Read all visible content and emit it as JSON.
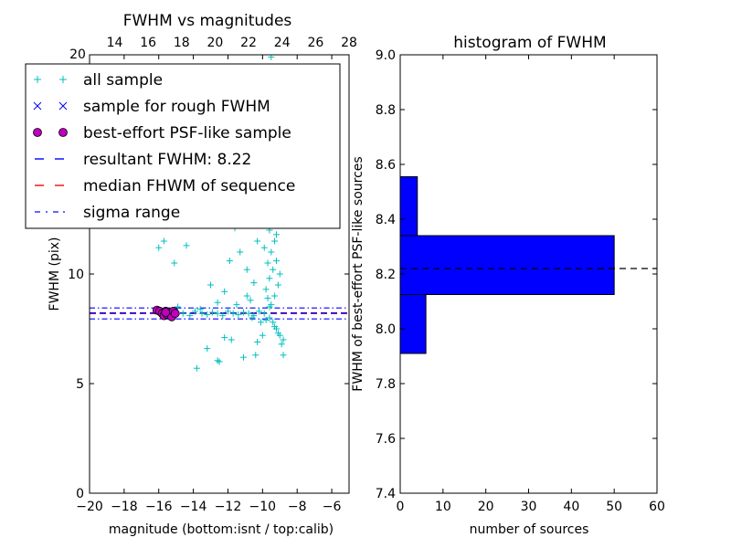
{
  "chart_data": [
    {
      "type": "scatter",
      "title": "FWHM vs magnitudes",
      "xlabel": "magnitude (bottom:isnt / top:calib)",
      "ylabel": "FWHM (pix)",
      "xlim": [
        -20,
        -5
      ],
      "ylim": [
        0,
        20
      ],
      "x_ticks": [
        -20,
        -18,
        -16,
        -14,
        -12,
        -10,
        -8,
        -6
      ],
      "x_tick_labels": [
        "−20",
        "−18",
        "−16",
        "−14",
        "−12",
        "−10",
        "−8",
        "−6"
      ],
      "y_ticks": [
        0,
        5,
        10
      ],
      "y_tick_labels": [
        "0",
        "5",
        "10"
      ],
      "top_axis": {
        "xlim": [
          12.5,
          28
        ],
        "ticks": [
          14,
          16,
          18,
          20,
          22,
          24,
          26,
          28
        ],
        "tick_labels": [
          "14",
          "16",
          "18",
          "20",
          "22",
          "24",
          "26",
          "28"
        ],
        "corner_label": "20"
      },
      "legend_position": "upper-left",
      "legend": [
        {
          "label": "all sample",
          "marker": "plus",
          "color": "#00bfbf"
        },
        {
          "label": "sample for rough FWHM",
          "marker": "x",
          "color": "#0000ff"
        },
        {
          "label": "best-effort PSF-like sample",
          "marker": "circle",
          "color": "#bf00bf"
        },
        {
          "label": "resultant FWHM: 8.22",
          "marker": "dashed",
          "color": "#0000ff"
        },
        {
          "label": "median FHWM of sequence",
          "marker": "dashed",
          "color": "#ff0000"
        },
        {
          "label": "sigma range",
          "marker": "dashdot",
          "color": "#0000ff"
        }
      ],
      "resultant_fwhm": 8.22,
      "median_fwhm": 8.2,
      "sigma_range": [
        7.95,
        8.45
      ],
      "series": [
        {
          "name": "all sample",
          "points": [
            [
              -13.8,
              5.7
            ],
            [
              -12.5,
              6.0
            ],
            [
              -12.6,
              6.05
            ],
            [
              -13.2,
              6.6
            ],
            [
              -11.1,
              6.2
            ],
            [
              -10.4,
              6.3
            ],
            [
              -8.8,
              6.3
            ],
            [
              -12.2,
              7.1
            ],
            [
              -11.8,
              7.0
            ],
            [
              -10.3,
              6.9
            ],
            [
              -10.0,
              7.2
            ],
            [
              -9.1,
              7.3
            ],
            [
              -9.3,
              7.6
            ],
            [
              -8.9,
              6.8
            ],
            [
              -15.8,
              8.2
            ],
            [
              -15.4,
              8.15
            ],
            [
              -15.0,
              8.25
            ],
            [
              -14.6,
              8.2
            ],
            [
              -14.2,
              8.1
            ],
            [
              -13.9,
              8.3
            ],
            [
              -13.5,
              8.2
            ],
            [
              -13.2,
              8.15
            ],
            [
              -12.9,
              8.25
            ],
            [
              -12.6,
              8.2
            ],
            [
              -12.3,
              8.1
            ],
            [
              -12.0,
              8.3
            ],
            [
              -11.7,
              8.2
            ],
            [
              -11.4,
              8.15
            ],
            [
              -11.1,
              8.25
            ],
            [
              -10.8,
              8.2
            ],
            [
              -10.5,
              8.1
            ],
            [
              -10.2,
              8.3
            ],
            [
              -9.9,
              8.2
            ],
            [
              -9.6,
              8.0
            ],
            [
              -9.4,
              7.8
            ],
            [
              -9.2,
              7.5
            ],
            [
              -9.0,
              7.2
            ],
            [
              -8.8,
              7.0
            ],
            [
              -9.5,
              8.6
            ],
            [
              -9.7,
              8.9
            ],
            [
              -9.8,
              9.3
            ],
            [
              -9.6,
              9.8
            ],
            [
              -9.4,
              10.2
            ],
            [
              -9.2,
              10.6
            ],
            [
              -9.5,
              11.0
            ],
            [
              -9.3,
              11.5
            ],
            [
              -9.6,
              12.0
            ],
            [
              -9.1,
              12.5
            ],
            [
              -9.4,
              13.0
            ],
            [
              -9.2,
              11.8
            ],
            [
              -9.0,
              10.0
            ],
            [
              -9.7,
              10.5
            ],
            [
              -9.9,
              11.2
            ],
            [
              -10.1,
              12.3
            ],
            [
              -10.3,
              11.5
            ],
            [
              -9.5,
              12.7
            ],
            [
              -9.0,
              13.3
            ],
            [
              -9.3,
              9.0
            ],
            [
              -9.1,
              9.5
            ],
            [
              -9.6,
              8.5
            ],
            [
              -10.5,
              9.6
            ],
            [
              -10.9,
              10.2
            ],
            [
              -11.3,
              11.0
            ],
            [
              -11.6,
              12.1
            ],
            [
              -12.0,
              12.6
            ],
            [
              -12.8,
              13.3
            ],
            [
              -13.3,
              12.8
            ],
            [
              -14.0,
              13.0
            ],
            [
              -14.4,
              11.3
            ],
            [
              -15.6,
              12.2
            ],
            [
              -15.7,
              11.5
            ],
            [
              -16.0,
              11.2
            ],
            [
              -15.1,
              10.5
            ],
            [
              -13.0,
              9.5
            ],
            [
              -12.2,
              9.2
            ],
            [
              -11.9,
              10.6
            ],
            [
              -10.9,
              9.0
            ],
            [
              -11.5,
              8.6
            ],
            [
              -10.7,
              8.8
            ],
            [
              -12.6,
              8.7
            ],
            [
              -13.6,
              8.4
            ],
            [
              -14.9,
              8.5
            ],
            [
              -9.8,
              7.9
            ],
            [
              -10.1,
              7.8
            ],
            [
              -10.6,
              8.0
            ],
            [
              -9.2,
              14.0
            ],
            [
              -9.4,
              14.5
            ],
            [
              -9.5,
              15.0
            ],
            [
              -10.4,
              13.8
            ],
            [
              -10.7,
              14.8
            ],
            [
              -12.4,
              14.5
            ],
            [
              -9.5,
              19.9
            ]
          ]
        },
        {
          "name": "sample for rough FWHM",
          "points": [
            [
              -15.9,
              8.3
            ],
            [
              -15.7,
              8.2
            ],
            [
              -15.5,
              8.35
            ],
            [
              -15.3,
              8.15
            ],
            [
              -15.1,
              8.25
            ]
          ]
        },
        {
          "name": "best-effort PSF-like sample",
          "points": [
            [
              -16.1,
              8.35
            ],
            [
              -15.95,
              8.3
            ],
            [
              -15.8,
              8.2
            ],
            [
              -15.7,
              8.1
            ],
            [
              -15.6,
              8.3
            ],
            [
              -15.5,
              8.15
            ],
            [
              -15.4,
              8.25
            ],
            [
              -15.3,
              8.2
            ],
            [
              -15.25,
              8.05
            ],
            [
              -15.15,
              8.3
            ],
            [
              -15.05,
              8.2
            ],
            [
              -15.6,
              8.25
            ]
          ]
        }
      ]
    },
    {
      "type": "bar",
      "orientation": "horizontal",
      "title": "histogram of FWHM",
      "xlabel": "number of sources",
      "ylabel": "FWHM of best-effort PSF-like sources",
      "xlim": [
        0,
        60
      ],
      "ylim": [
        7.4,
        9.0
      ],
      "x_ticks": [
        0,
        10,
        20,
        30,
        40,
        50,
        60
      ],
      "y_ticks": [
        7.4,
        7.6,
        7.8,
        8.0,
        8.2,
        8.4,
        8.6,
        8.8,
        9.0
      ],
      "y_tick_labels": [
        "7.4",
        "7.6",
        "7.8",
        "8.0",
        "8.2",
        "8.4",
        "8.6",
        "8.8",
        "9.0"
      ],
      "bins": [
        {
          "low": 7.91,
          "high": 8.125,
          "count": 6
        },
        {
          "low": 8.125,
          "high": 8.34,
          "count": 50
        },
        {
          "low": 8.34,
          "high": 8.555,
          "count": 4
        }
      ],
      "reference_line": 8.22,
      "bar_color": "#0000ff"
    }
  ]
}
